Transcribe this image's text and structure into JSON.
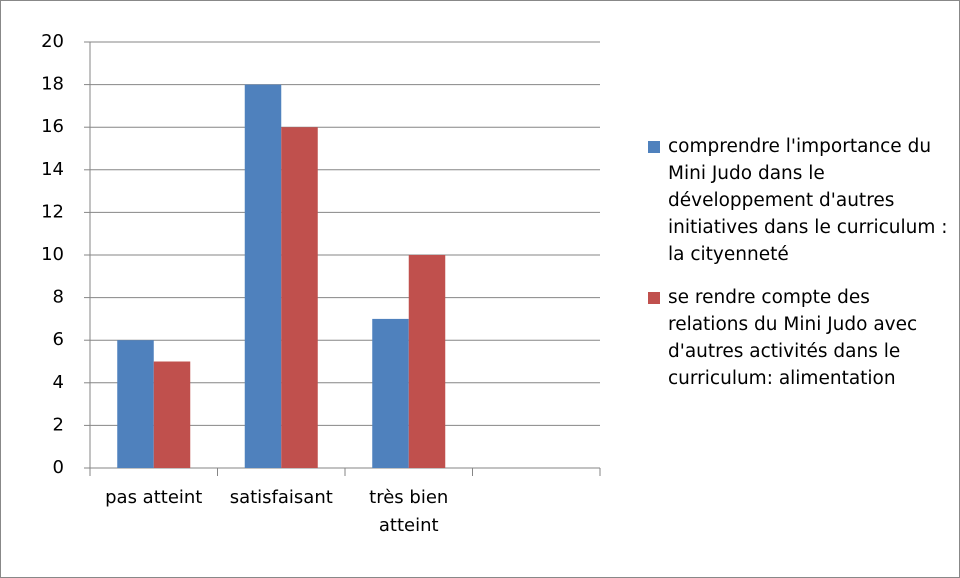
{
  "chart_data": {
    "type": "bar",
    "categories": [
      "pas atteint",
      "satisfaisant",
      "très bien atteint",
      null
    ],
    "series": [
      {
        "name": "comprendre l'importance du Mini Judo dans le développement d'autres initiatives dans le curriculum : la cityenneté",
        "color": "#4f81bd",
        "values": [
          6,
          18,
          7,
          null
        ]
      },
      {
        "name": "se rendre compte des relations du Mini Judo avec d'autres activités dans le curriculum: alimentation",
        "color": "#c0504d",
        "values": [
          5,
          16,
          10,
          null
        ]
      }
    ],
    "ylim": [
      0,
      20
    ],
    "yticks": [
      0,
      2,
      4,
      6,
      8,
      10,
      12,
      14,
      16,
      18,
      20
    ],
    "grid": true,
    "legend": "right"
  }
}
